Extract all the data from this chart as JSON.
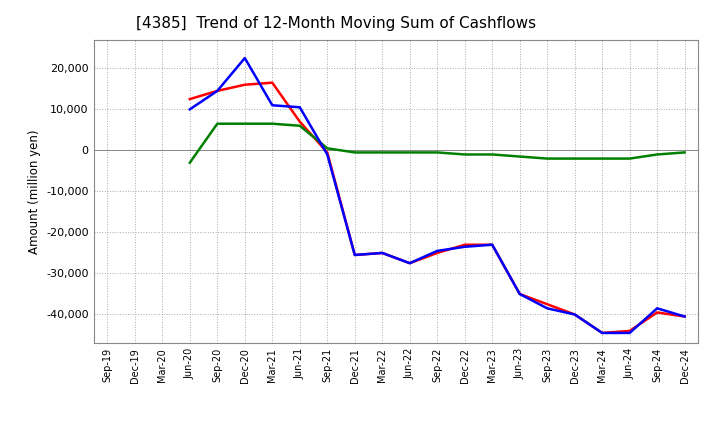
{
  "title": "[4385]  Trend of 12-Month Moving Sum of Cashflows",
  "ylabel": "Amount (million yen)",
  "x_labels": [
    "Sep-19",
    "Dec-19",
    "Mar-20",
    "Jun-20",
    "Sep-20",
    "Dec-20",
    "Mar-21",
    "Jun-21",
    "Sep-21",
    "Dec-21",
    "Mar-22",
    "Jun-22",
    "Sep-22",
    "Dec-22",
    "Mar-23",
    "Jun-23",
    "Sep-23",
    "Dec-23",
    "Mar-24",
    "Jun-24",
    "Sep-24",
    "Dec-24"
  ],
  "operating": [
    null,
    null,
    null,
    12500,
    14500,
    16000,
    16500,
    7000,
    -500,
    -25500,
    -25000,
    -27500,
    -25000,
    -23000,
    -23000,
    -35000,
    -37500,
    -40000,
    -44500,
    -44000,
    -39500,
    -40500
  ],
  "investing": [
    null,
    null,
    null,
    -3000,
    6500,
    6500,
    6500,
    6000,
    500,
    -500,
    -500,
    -500,
    -500,
    -1000,
    -1000,
    -1500,
    -2000,
    -2000,
    -2000,
    -2000,
    -1000,
    -500
  ],
  "free": [
    null,
    null,
    null,
    10000,
    14500,
    22500,
    11000,
    10500,
    -1000,
    -25500,
    -25000,
    -27500,
    -24500,
    -23500,
    -23000,
    -35000,
    -38500,
    -40000,
    -44500,
    -44500,
    -38500,
    -40500
  ],
  "operating_color": "#ff0000",
  "investing_color": "#008000",
  "free_color": "#0000ff",
  "ylim": [
    -47000,
    27000
  ],
  "yticks": [
    -40000,
    -30000,
    -20000,
    -10000,
    0,
    10000,
    20000
  ],
  "background_color": "#ffffff",
  "grid_color": "#aaaaaa",
  "title_fontsize": 11
}
